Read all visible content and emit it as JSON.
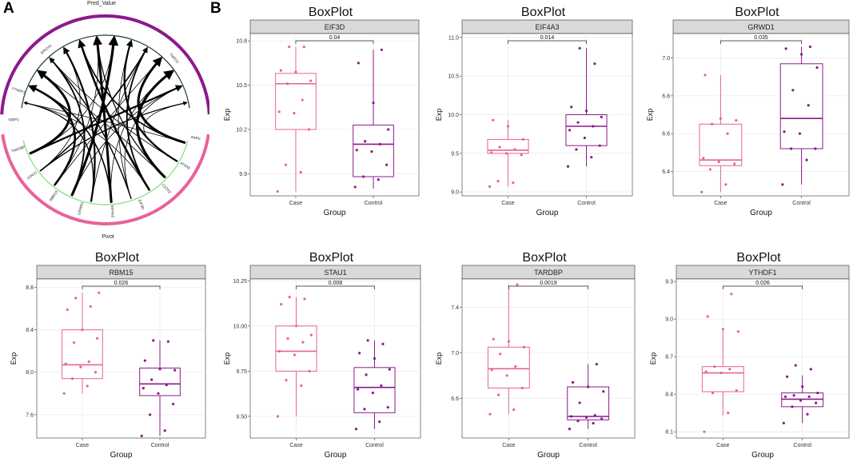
{
  "labels": {
    "panel_a": "A",
    "panel_b": "B"
  },
  "colors": {
    "case": "#e8629a",
    "control": "#8b1a8b",
    "strip": "#d9d9d9",
    "grid": "#ebebeb",
    "outer_top": "#8b1a8b",
    "outer_bottom": "#e8629a",
    "inner_top": "#1b3a4b",
    "inner_bottom": "#7ee07e"
  },
  "circos": {
    "outer_top_label": "Pred_Value",
    "outer_bottom_label": "Pivot",
    "top_sector_labels": [
      "ERICH1",
      "TNPO3"
    ],
    "bottom_sector_labels": [
      "AARS",
      "ATXN2",
      "CSTF2",
      "EIF3D",
      "EIF4A3",
      "GRWD1",
      "RBM15",
      "STAU1",
      "TARDBP",
      "IGBP2",
      "YTHDF1"
    ]
  },
  "chart_data": [
    {
      "type": "box",
      "title": "BoxPlot",
      "strip": "EIF3D",
      "xlabel": "Group",
      "ylabel": "Exp",
      "categories": [
        "Case",
        "Control"
      ],
      "ylim": [
        9.75,
        10.85
      ],
      "yticks": [
        "9.9",
        "10.2",
        "10.5",
        "10.8"
      ],
      "pvalue": "0.04",
      "boxes": [
        {
          "q1": 10.2,
          "median": 10.51,
          "q3": 10.58,
          "lo": 9.78,
          "hi": 10.76
        },
        {
          "q1": 9.88,
          "median": 10.1,
          "q3": 10.23,
          "lo": 9.8,
          "hi": 10.74
        }
      ],
      "points": [
        [
          9.78,
          9.91,
          9.96,
          10.2,
          10.31,
          10.32,
          10.4,
          10.51,
          10.53,
          10.59,
          10.6,
          10.76,
          10.76
        ],
        [
          9.81,
          9.86,
          9.88,
          9.96,
          10.05,
          10.06,
          10.1,
          10.12,
          10.2,
          10.38,
          10.65,
          10.74
        ]
      ]
    },
    {
      "type": "box",
      "title": "BoxPlot",
      "strip": "EIF4A3",
      "xlabel": "Group",
      "ylabel": "Exp",
      "categories": [
        "Case",
        "Control"
      ],
      "ylim": [
        8.95,
        11.05
      ],
      "yticks": [
        "9.0",
        "9.5",
        "10.0",
        "10.5",
        "11.0"
      ],
      "pvalue": "0.014",
      "boxes": [
        {
          "q1": 9.5,
          "median": 9.54,
          "q3": 9.68,
          "lo": 9.07,
          "hi": 9.93
        },
        {
          "q1": 9.6,
          "median": 9.85,
          "q3": 10.0,
          "lo": 9.33,
          "hi": 10.86
        }
      ],
      "points": [
        [
          9.07,
          9.12,
          9.14,
          9.48,
          9.5,
          9.51,
          9.55,
          9.58,
          9.68,
          9.85,
          9.93
        ],
        [
          9.33,
          9.45,
          9.55,
          9.6,
          9.7,
          9.8,
          9.85,
          9.9,
          9.97,
          10.05,
          10.1,
          10.66,
          10.86
        ]
      ]
    },
    {
      "type": "box",
      "title": "BoxPlot",
      "strip": "GRWD1",
      "xlabel": "Group",
      "ylabel": "Exp",
      "categories": [
        "Case",
        "Control"
      ],
      "ylim": [
        6.27,
        7.13
      ],
      "yticks": [
        "6.4",
        "6.6",
        "6.8",
        "7.0"
      ],
      "pvalue": "0.035",
      "boxes": [
        {
          "q1": 6.43,
          "median": 6.46,
          "q3": 6.65,
          "lo": 6.29,
          "hi": 6.91
        },
        {
          "q1": 6.52,
          "median": 6.68,
          "q3": 6.97,
          "lo": 6.33,
          "hi": 7.06
        }
      ],
      "points": [
        [
          6.29,
          6.33,
          6.41,
          6.44,
          6.45,
          6.47,
          6.6,
          6.65,
          6.67,
          6.68,
          6.91
        ],
        [
          6.33,
          6.46,
          6.52,
          6.52,
          6.6,
          6.61,
          6.75,
          6.83,
          6.95,
          7.02,
          7.05,
          7.06
        ]
      ]
    },
    {
      "type": "box",
      "title": "BoxPlot",
      "strip": "RBM15",
      "xlabel": "Group",
      "ylabel": "Exp",
      "categories": [
        "Case",
        "Control"
      ],
      "ylim": [
        7.38,
        8.88
      ],
      "yticks": [
        "7.6",
        "8.0",
        "8.4",
        "8.8"
      ],
      "pvalue": "0.026",
      "boxes": [
        {
          "q1": 7.94,
          "median": 8.07,
          "q3": 8.4,
          "lo": 7.8,
          "hi": 8.75
        },
        {
          "q1": 7.78,
          "median": 7.89,
          "q3": 8.04,
          "lo": 7.4,
          "hi": 8.3
        }
      ],
      "points": [
        [
          7.8,
          7.87,
          7.94,
          8.0,
          8.05,
          8.08,
          8.1,
          8.28,
          8.32,
          8.4,
          8.59,
          8.62,
          8.7,
          8.75
        ],
        [
          7.4,
          7.45,
          7.6,
          7.7,
          7.8,
          7.85,
          7.88,
          7.93,
          8.02,
          8.03,
          8.11,
          8.29,
          8.3
        ]
      ]
    },
    {
      "type": "box",
      "title": "BoxPlot",
      "strip": "STAU1",
      "xlabel": "Group",
      "ylabel": "Exp",
      "categories": [
        "Case",
        "Control"
      ],
      "ylim": [
        9.38,
        10.26
      ],
      "yticks": [
        "9.50",
        "9.75",
        "10.00",
        "10.25"
      ],
      "pvalue": "0.008",
      "boxes": [
        {
          "q1": 9.75,
          "median": 9.86,
          "q3": 10.0,
          "lo": 9.5,
          "hi": 10.16
        },
        {
          "q1": 9.52,
          "median": 9.66,
          "q3": 9.77,
          "lo": 9.43,
          "hi": 9.92
        }
      ],
      "points": [
        [
          9.5,
          9.67,
          9.7,
          9.75,
          9.84,
          9.86,
          9.91,
          9.93,
          9.95,
          10.0,
          10.12,
          10.15,
          10.16
        ],
        [
          9.43,
          9.47,
          9.54,
          9.55,
          9.63,
          9.65,
          9.67,
          9.73,
          9.76,
          9.82,
          9.85,
          9.9,
          9.92
        ]
      ]
    },
    {
      "type": "box",
      "title": "BoxPlot",
      "strip": "TARDBP",
      "xlabel": "Group",
      "ylabel": "Exp",
      "categories": [
        "Case",
        "Control"
      ],
      "ylim": [
        6.25,
        7.65
      ],
      "yticks": [
        "6.6",
        "7.0",
        "7.4"
      ],
      "pvalue": "0.0019",
      "boxes": [
        {
          "q1": 6.69,
          "median": 6.86,
          "q3": 7.05,
          "lo": 6.46,
          "hi": 7.6
        },
        {
          "q1": 6.41,
          "median": 6.44,
          "q3": 6.7,
          "lo": 6.33,
          "hi": 6.9
        }
      ],
      "points": [
        [
          6.46,
          6.5,
          6.63,
          6.69,
          6.8,
          6.85,
          6.88,
          6.99,
          7.05,
          7.1,
          7.12,
          7.6
        ],
        [
          6.33,
          6.38,
          6.4,
          6.42,
          6.43,
          6.44,
          6.45,
          6.56,
          6.66,
          6.7,
          6.74,
          6.9
        ]
      ]
    },
    {
      "type": "box",
      "title": "BoxPlot",
      "strip": "YTHDF1",
      "xlabel": "Group",
      "ylabel": "Exp",
      "categories": [
        "Case",
        "Control"
      ],
      "ylim": [
        8.05,
        9.32
      ],
      "yticks": [
        "8.1",
        "8.4",
        "8.7",
        "9.0",
        "9.3"
      ],
      "pvalue": "0.026",
      "boxes": [
        {
          "q1": 8.42,
          "median": 8.57,
          "q3": 8.62,
          "lo": 8.23,
          "hi": 8.92
        },
        {
          "q1": 8.3,
          "median": 8.36,
          "q3": 8.41,
          "lo": 8.17,
          "hi": 8.55
        }
      ],
      "points": [
        [
          8.1,
          8.25,
          8.41,
          8.43,
          8.57,
          8.58,
          8.6,
          8.62,
          8.9,
          8.92,
          9.02,
          9.2
        ],
        [
          8.17,
          8.24,
          8.3,
          8.33,
          8.35,
          8.38,
          8.38,
          8.39,
          8.41,
          8.46,
          8.54,
          8.6,
          8.63
        ]
      ]
    }
  ]
}
